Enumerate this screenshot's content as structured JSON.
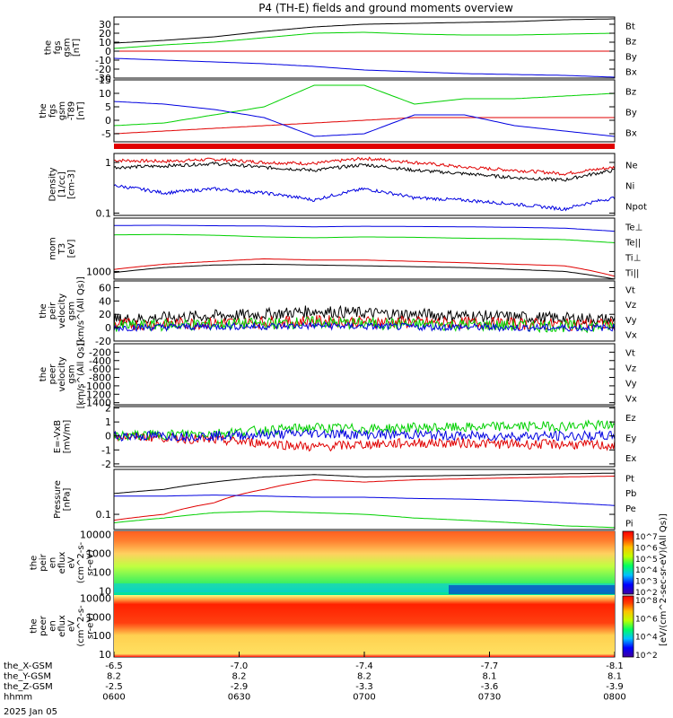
{
  "title": "P4 (TH-E) fields and ground moments overview",
  "colors": {
    "black": "#000000",
    "red": "#e00000",
    "green": "#00d000",
    "blue": "#0000e0"
  },
  "x_axis": {
    "ticks": [
      "0600",
      "0630",
      "0700",
      "0730",
      "0800"
    ],
    "rows": [
      {
        "label": "the_X-GSM",
        "values": [
          "-6.5",
          "-7.0",
          "-7.4",
          "-7.7",
          "-8.1"
        ]
      },
      {
        "label": "the_Y-GSM",
        "values": [
          "8.2",
          "8.2",
          "8.2",
          "8.1",
          "8.1"
        ]
      },
      {
        "label": "the_Z-GSM",
        "values": [
          "-2.5",
          "-2.9",
          "-3.3",
          "-3.6",
          "-3.9"
        ]
      },
      {
        "label": "hhmm",
        "values": [
          "0600",
          "0630",
          "0700",
          "0730",
          "0800"
        ]
      }
    ],
    "date": "2025 Jan 05"
  },
  "chart_data": [
    {
      "type": "line",
      "id": "fgs_gsm",
      "ylabel": [
        "the",
        "fgs",
        "gsm",
        "[nT]"
      ],
      "ylim": [
        -30,
        38
      ],
      "yticks": [
        "30",
        "20",
        "10",
        "0",
        "-10",
        "-20",
        "-30"
      ],
      "ytick_values": [
        30,
        20,
        10,
        0,
        -10,
        -20,
        -30
      ],
      "series": [
        {
          "name": "Bt",
          "color": "#000000",
          "x": [
            0,
            0.1,
            0.2,
            0.3,
            0.4,
            0.5,
            0.6,
            0.7,
            0.8,
            0.9,
            1
          ],
          "values": [
            9,
            12,
            16,
            22,
            27,
            30,
            31,
            32,
            33,
            35,
            36
          ]
        },
        {
          "name": "Bz",
          "color": "#e00000",
          "x": [
            0,
            1
          ],
          "values": [
            0,
            0
          ]
        },
        {
          "name": "By",
          "color": "#00d000",
          "x": [
            0,
            0.1,
            0.2,
            0.3,
            0.4,
            0.5,
            0.6,
            0.7,
            0.8,
            0.9,
            1
          ],
          "values": [
            3,
            7,
            10,
            15,
            20,
            21,
            19,
            18,
            18,
            19,
            20
          ]
        },
        {
          "name": "Bx",
          "color": "#0000e0",
          "x": [
            0,
            0.1,
            0.2,
            0.3,
            0.4,
            0.5,
            0.6,
            0.7,
            0.8,
            0.9,
            1
          ],
          "values": [
            -8,
            -10,
            -12,
            -14,
            -17,
            -21,
            -23,
            -25,
            -26,
            -27,
            -29
          ]
        }
      ]
    },
    {
      "type": "line",
      "id": "fgs_gsm_dip",
      "ylabel": [
        "the",
        "fgs",
        "gsm",
        "-T89",
        "[nT]"
      ],
      "ylim": [
        -8,
        15
      ],
      "yticks": [
        "15",
        "10",
        "5",
        "0",
        "-5"
      ],
      "ytick_values": [
        15,
        10,
        5,
        0,
        -5
      ],
      "series": [
        {
          "name": "Bz",
          "color": "#e00000",
          "x": [
            0,
            0.1,
            0.2,
            0.3,
            0.4,
            0.5,
            0.6,
            0.7,
            0.8,
            0.9,
            1
          ],
          "values": [
            -5,
            -4,
            -3,
            -2,
            -1,
            0,
            1,
            1,
            1,
            1,
            1
          ]
        },
        {
          "name": "By",
          "color": "#00d000",
          "x": [
            0,
            0.1,
            0.2,
            0.3,
            0.4,
            0.5,
            0.6,
            0.7,
            0.8,
            0.9,
            1
          ],
          "values": [
            -2,
            -1,
            2,
            5,
            13,
            13,
            6,
            8,
            8,
            9,
            10
          ]
        },
        {
          "name": "Bx",
          "color": "#0000e0",
          "x": [
            0,
            0.1,
            0.2,
            0.3,
            0.4,
            0.5,
            0.6,
            0.7,
            0.8,
            0.9,
            1
          ],
          "values": [
            7,
            6,
            4,
            1,
            -6,
            -5,
            2,
            2,
            -2,
            -4,
            -6
          ]
        }
      ]
    },
    {
      "type": "line",
      "id": "density",
      "log": true,
      "ylabel": [
        "Density",
        "[1/cc]",
        "[cm-3]"
      ],
      "ylim": [
        0.09,
        1.5
      ],
      "yticks": [
        "1",
        "0.1"
      ],
      "ytick_values": [
        1,
        0.1
      ],
      "series": [
        {
          "name": "Ne",
          "color": "#e00000",
          "x": [
            0,
            0.1,
            0.2,
            0.3,
            0.4,
            0.5,
            0.6,
            0.7,
            0.8,
            0.9,
            1
          ],
          "values": [
            1.1,
            1.05,
            1.15,
            1.0,
            0.95,
            1.2,
            1.0,
            0.8,
            0.7,
            0.6,
            0.8
          ]
        },
        {
          "name": "Ni",
          "color": "#000000",
          "x": [
            0,
            0.1,
            0.2,
            0.3,
            0.4,
            0.5,
            0.6,
            0.7,
            0.8,
            0.9,
            1
          ],
          "values": [
            0.8,
            0.85,
            0.95,
            0.8,
            0.7,
            0.9,
            0.7,
            0.6,
            0.5,
            0.45,
            0.7
          ]
        },
        {
          "name": "Npot",
          "color": "#0000e0",
          "x": [
            0,
            0.1,
            0.2,
            0.3,
            0.4,
            0.5,
            0.6,
            0.7,
            0.8,
            0.9,
            1
          ],
          "values": [
            0.35,
            0.25,
            0.3,
            0.25,
            0.18,
            0.3,
            0.2,
            0.18,
            0.15,
            0.12,
            0.2
          ]
        }
      ]
    },
    {
      "type": "line",
      "id": "temperature",
      "log": true,
      "ylabel": [
        "mom",
        "T3",
        "[eV]"
      ],
      "ylim": [
        700,
        12000
      ],
      "yticks": [
        "1000"
      ],
      "ytick_values": [
        1000
      ],
      "series": [
        {
          "name": "Te⊥",
          "color": "#e00000",
          "x": [
            0,
            0.1,
            0.2,
            0.3,
            0.4,
            0.5,
            0.6,
            0.7,
            0.8,
            0.9,
            1
          ],
          "values": [
            1100,
            1400,
            1600,
            1800,
            1700,
            1700,
            1600,
            1500,
            1400,
            1300,
            800
          ]
        },
        {
          "name": "Te||",
          "color": "#000000",
          "x": [
            0,
            0.1,
            0.2,
            0.3,
            0.4,
            0.5,
            0.6,
            0.7,
            0.8,
            0.9,
            1
          ],
          "values": [
            950,
            1200,
            1350,
            1400,
            1350,
            1300,
            1250,
            1200,
            1100,
            1000,
            700
          ]
        },
        {
          "name": "Ti⊥",
          "color": "#0000e0",
          "x": [
            0,
            0.1,
            0.2,
            0.3,
            0.4,
            0.5,
            0.6,
            0.7,
            0.8,
            0.9,
            1
          ],
          "values": [
            8500,
            8600,
            8400,
            8300,
            8000,
            8200,
            8100,
            8000,
            7800,
            7500,
            6500
          ]
        },
        {
          "name": "Ti||",
          "color": "#00d000",
          "x": [
            0,
            0.1,
            0.2,
            0.3,
            0.4,
            0.5,
            0.6,
            0.7,
            0.8,
            0.9,
            1
          ],
          "values": [
            5500,
            5600,
            5400,
            5000,
            4800,
            5000,
            4900,
            4700,
            4600,
            4400,
            3800
          ]
        }
      ]
    },
    {
      "type": "line",
      "id": "peir_velocity",
      "ylabel": [
        "the",
        "peir",
        "velocity",
        "gsm",
        "[km/s^(All Qs)]"
      ],
      "ylim": [
        -20,
        70
      ],
      "yticks": [
        "60",
        "40",
        "20",
        "0",
        "-20"
      ],
      "ytick_values": [
        60,
        40,
        20,
        0,
        -20
      ],
      "series": [
        {
          "name": "Vt",
          "color": "#000000",
          "x": [
            0,
            0.1,
            0.2,
            0.3,
            0.4,
            0.5,
            0.6,
            0.7,
            0.8,
            0.9,
            1
          ],
          "values": [
            12,
            15,
            18,
            20,
            25,
            22,
            20,
            18,
            16,
            14,
            12
          ]
        },
        {
          "name": "Vz",
          "color": "#e00000",
          "x": [
            0,
            0.1,
            0.2,
            0.3,
            0.4,
            0.5,
            0.6,
            0.7,
            0.8,
            0.9,
            1
          ],
          "values": [
            5,
            6,
            7,
            8,
            10,
            9,
            8,
            7,
            6,
            5,
            5
          ]
        },
        {
          "name": "Vy",
          "color": "#00d000",
          "x": [
            0,
            0.1,
            0.2,
            0.3,
            0.4,
            0.5,
            0.6,
            0.7,
            0.8,
            0.9,
            1
          ],
          "values": [
            2,
            4,
            5,
            6,
            8,
            6,
            5,
            4,
            3,
            2,
            2
          ]
        },
        {
          "name": "Vx",
          "color": "#0000e0",
          "x": [
            0,
            0.1,
            0.2,
            0.3,
            0.4,
            0.5,
            0.6,
            0.7,
            0.8,
            0.9,
            1
          ],
          "values": [
            0,
            1,
            2,
            2,
            3,
            2,
            1,
            1,
            0,
            0,
            0
          ]
        }
      ]
    },
    {
      "type": "line",
      "id": "peer_velocity",
      "ylabel": [
        "the",
        "peer",
        "velocity",
        "gsm",
        "[km/s^(All Qs)]"
      ],
      "ylim": [
        -1450,
        0
      ],
      "yticks": [
        "-200",
        "-400",
        "-600",
        "-800",
        "-1000",
        "-1200",
        "-1400"
      ],
      "ytick_values": [
        -200,
        -400,
        -600,
        -800,
        -1000,
        -1200,
        -1400
      ],
      "series": [
        {
          "name": "Vt",
          "color": "#000000",
          "x": [],
          "values": []
        },
        {
          "name": "Vz",
          "color": "#e00000",
          "x": [],
          "values": []
        },
        {
          "name": "Vy",
          "color": "#00d000",
          "x": [],
          "values": []
        },
        {
          "name": "Vx",
          "color": "#0000e0",
          "x": [],
          "values": []
        }
      ]
    },
    {
      "type": "line",
      "id": "efield",
      "ylabel": [
        "E=-VxB",
        "[mV/m]"
      ],
      "ylim": [
        -2.2,
        2.1
      ],
      "yticks": [
        "2",
        "1",
        "0",
        "-1",
        "-2"
      ],
      "ytick_values": [
        2,
        1,
        0,
        -1,
        -2
      ],
      "series": [
        {
          "name": "Ez",
          "color": "#e00000",
          "x": [
            0,
            0.1,
            0.2,
            0.3,
            0.4,
            0.5,
            0.6,
            0.7,
            0.8,
            0.9,
            1
          ],
          "values": [
            0,
            -0.1,
            -0.3,
            -0.5,
            -0.8,
            -0.6,
            -0.5,
            -0.5,
            -0.6,
            -0.6,
            -0.7
          ]
        },
        {
          "name": "Ey",
          "color": "#00d000",
          "x": [
            0,
            0.1,
            0.2,
            0.3,
            0.4,
            0.5,
            0.6,
            0.7,
            0.8,
            0.9,
            1
          ],
          "values": [
            0,
            0.1,
            0.2,
            0.4,
            0.6,
            0.5,
            0.6,
            0.6,
            0.7,
            0.7,
            0.8
          ]
        },
        {
          "name": "Ex",
          "color": "#0000e0",
          "x": [
            0,
            0.1,
            0.2,
            0.3,
            0.4,
            0.5,
            0.6,
            0.7,
            0.8,
            0.9,
            1
          ],
          "values": [
            0,
            0,
            0,
            0.1,
            0.2,
            0.1,
            0.1,
            0,
            0,
            0,
            0
          ]
        }
      ]
    },
    {
      "type": "line",
      "id": "pressure",
      "log": true,
      "ylabel": [
        "Pressure",
        "[nPa]"
      ],
      "ylim": [
        0.04,
        1.5
      ],
      "yticks": [
        "0.1"
      ],
      "ytick_values": [
        0.1
      ],
      "series": [
        {
          "name": "Pt",
          "color": "#000000",
          "x": [
            0,
            0.1,
            0.2,
            0.3,
            0.4,
            0.5,
            0.6,
            0.7,
            0.8,
            0.9,
            1
          ],
          "values": [
            0.35,
            0.45,
            0.7,
            0.95,
            1.1,
            0.95,
            1.0,
            1.05,
            1.1,
            1.15,
            1.2
          ]
        },
        {
          "name": "Pb",
          "color": "#e00000",
          "x": [
            0,
            0.1,
            0.2,
            0.3,
            0.4,
            0.5,
            0.6,
            0.7,
            0.8,
            0.9,
            1
          ],
          "values": [
            0.07,
            0.1,
            0.2,
            0.45,
            0.8,
            0.7,
            0.8,
            0.85,
            0.9,
            0.95,
            1.0
          ]
        },
        {
          "name": "Pe",
          "color": "#00d000",
          "x": [
            0,
            0.1,
            0.2,
            0.3,
            0.4,
            0.5,
            0.6,
            0.7,
            0.8,
            0.9,
            1
          ],
          "values": [
            0.06,
            0.08,
            0.11,
            0.12,
            0.11,
            0.1,
            0.08,
            0.07,
            0.06,
            0.05,
            0.045
          ]
        },
        {
          "name": "Pi",
          "color": "#0000e0",
          "x": [
            0,
            0.1,
            0.2,
            0.3,
            0.4,
            0.5,
            0.6,
            0.7,
            0.8,
            0.9,
            1
          ],
          "values": [
            0.3,
            0.3,
            0.32,
            0.3,
            0.28,
            0.28,
            0.26,
            0.25,
            0.23,
            0.2,
            0.17
          ]
        }
      ]
    },
    {
      "type": "heatmap",
      "id": "peir_spec",
      "ylabel": [
        "the",
        "peir",
        "en",
        "eflux",
        "eV",
        "(cm^2-s-",
        "sr-eV)"
      ],
      "yticks": [
        "10000",
        "1000",
        "100",
        "10"
      ],
      "colorbar_ticks": [
        "10^7",
        "10^6",
        "10^5",
        "10^4",
        "10^3",
        "10^2"
      ]
    },
    {
      "type": "heatmap",
      "id": "peer_spec",
      "ylabel": [
        "the",
        "peer",
        "en",
        "eflux",
        "eV",
        "(cm^2-s-",
        "sr-eV)"
      ],
      "yticks": [
        "10000",
        "1000",
        "100",
        "10"
      ],
      "colorbar_ticks": [
        "10^8",
        "10^6",
        "10^4",
        "10^2"
      ]
    }
  ],
  "colorbar_label": "[eV/(cm^2-sec-sr-eV)(All Qs)]"
}
